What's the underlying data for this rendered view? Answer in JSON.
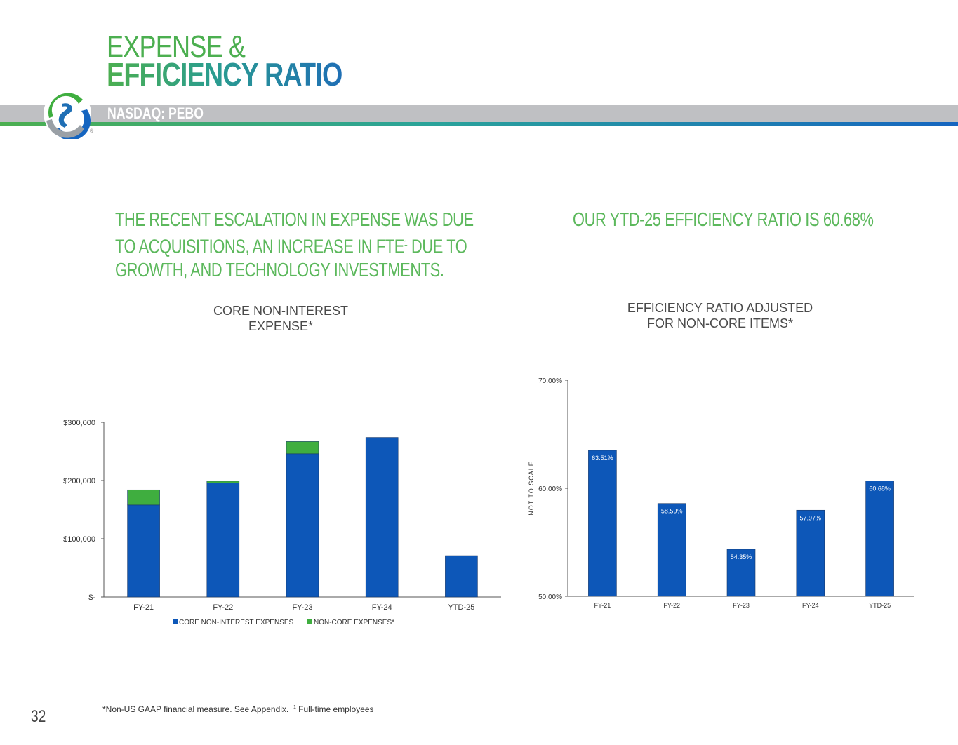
{
  "header": {
    "title_line1": "EXPENSE &",
    "title_line2": "EFFICIENCY RATIO",
    "ticker": "NASDAQ: PEBO",
    "registered_mark": "®"
  },
  "headlines": {
    "left": [
      "THE RECENT ESCALATION IN EXPENSE WAS DUE",
      "TO ACQUISITIONS, AN INCREASE IN FTE",
      "GROWTH, AND TECHNOLOGY INVESTMENTS."
    ],
    "left_sup": "1",
    "left_line2_tail": " DUE TO",
    "right": "OUR YTD-25 EFFICIENCY RATIO IS 60.68%"
  },
  "chart_data": [
    {
      "type": "bar",
      "stacked": true,
      "title": "CORE NON-INTEREST EXPENSE*",
      "title_lines": [
        "CORE NON-INTEREST",
        "EXPENSE*"
      ],
      "categories": [
        "FY-21",
        "FY-22",
        "FY-23",
        "FY-24",
        "YTD-25"
      ],
      "series": [
        {
          "name": "CORE NON-INTEREST EXPENSES",
          "color": "#0d57b8",
          "values": [
            158000,
            196000,
            246000,
            274000,
            71000
          ]
        },
        {
          "name": "NON-CORE EXPENSES*",
          "color": "#3fae3f",
          "values": [
            26000,
            3000,
            21000,
            0,
            0
          ]
        }
      ],
      "ylim": [
        0,
        300000
      ],
      "yticks": [
        0,
        100000,
        200000,
        300000
      ],
      "ytick_labels": [
        "$-",
        "$100,000",
        "$200,000",
        "$300,000"
      ],
      "legend": "bottom"
    },
    {
      "type": "bar",
      "title": "EFFICIENCY RATIO ADJUSTED FOR NON-CORE ITEMS*",
      "title_lines": [
        "EFFICIENCY RATIO ADJUSTED",
        "FOR NON-CORE ITEMS*"
      ],
      "categories": [
        "FY-21",
        "FY-22",
        "FY-23",
        "FY-24",
        "YTD-25"
      ],
      "values": [
        63.51,
        58.59,
        54.35,
        57.97,
        60.68
      ],
      "data_labels": [
        "63.51%",
        "58.59%",
        "54.35%",
        "57.97%",
        "60.68%"
      ],
      "color": "#0d57b8",
      "ylim": [
        50,
        70
      ],
      "yticks": [
        50,
        60,
        70
      ],
      "ytick_labels": [
        "50.00%",
        "60.00%",
        "70.00%"
      ],
      "ylabel": "NOT TO SCALE"
    }
  ],
  "footer": {
    "footnote": "*Non-US GAAP financial measure. See Appendix.",
    "footnote_sup": "1",
    "footnote_tail": " Full-time employees",
    "page_number": "32"
  }
}
